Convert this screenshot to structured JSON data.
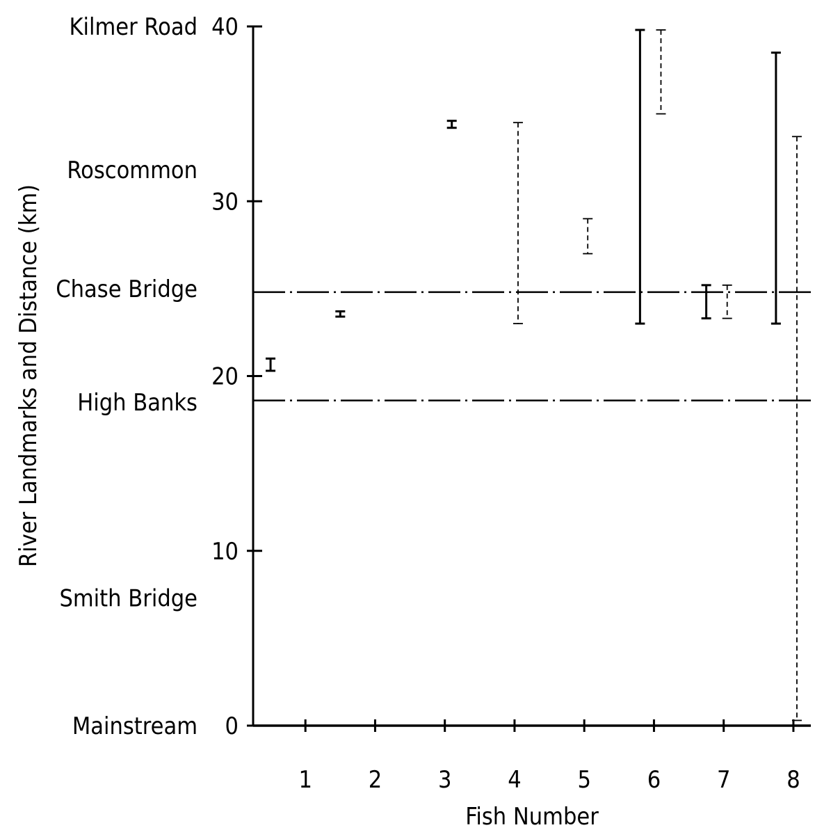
{
  "chart_data": {
    "type": "range",
    "xlabel": "Fish Number",
    "ylabel": "River Landmarks and Distance (km)",
    "ylim": [
      0,
      40
    ],
    "xlim": [
      0.25,
      8.25
    ],
    "y_ticks": [
      0,
      10,
      20,
      30,
      40
    ],
    "x_ticks": [
      1,
      2,
      3,
      4,
      5,
      6,
      7,
      8
    ],
    "grid": false,
    "landmarks": [
      {
        "name": "Kilmer Road",
        "km": 40
      },
      {
        "name": "Roscommon",
        "km": 31.8
      },
      {
        "name": "Chase Bridge",
        "km": 25
      },
      {
        "name": "High Banks",
        "km": 18.5
      },
      {
        "name": "Smith Bridge",
        "km": 7.3
      },
      {
        "name": "Mainstream",
        "km": 0
      }
    ],
    "reference_lines": [
      {
        "landmark": "Chase Bridge",
        "km": 24.8
      },
      {
        "landmark": "High Banks",
        "km": 18.6
      }
    ],
    "ranges": [
      {
        "fish": 0.5,
        "low": 20.3,
        "high": 21.0,
        "style": "solid"
      },
      {
        "fish": 1.5,
        "low": 23.4,
        "high": 23.7,
        "style": "solid"
      },
      {
        "fish": 3.1,
        "low": 34.2,
        "high": 34.6,
        "style": "solid"
      },
      {
        "fish": 4.05,
        "low": 23.0,
        "high": 34.5,
        "style": "dashed"
      },
      {
        "fish": 5.05,
        "low": 27.0,
        "high": 29.0,
        "style": "dashed"
      },
      {
        "fish": 5.8,
        "low": 23.0,
        "high": 39.8,
        "style": "solid"
      },
      {
        "fish": 6.1,
        "low": 35.0,
        "high": 39.8,
        "style": "dashed"
      },
      {
        "fish": 6.75,
        "low": 23.3,
        "high": 25.2,
        "style": "solid"
      },
      {
        "fish": 7.05,
        "low": 23.3,
        "high": 25.2,
        "style": "dashed"
      },
      {
        "fish": 7.75,
        "low": 23.0,
        "high": 38.5,
        "style": "solid"
      },
      {
        "fish": 8.05,
        "low": 0.3,
        "high": 33.7,
        "style": "dashed"
      }
    ]
  }
}
